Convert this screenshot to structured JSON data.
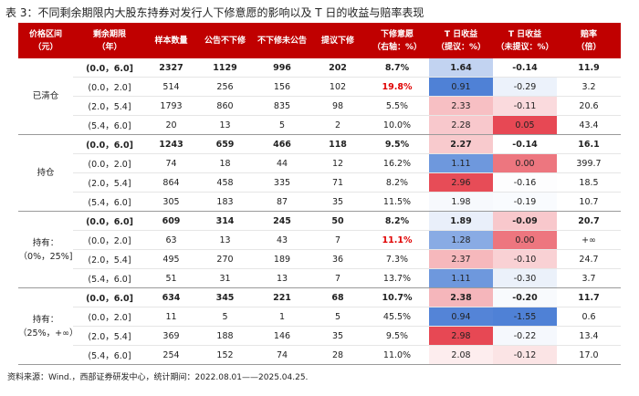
{
  "title": "表 3：不同剩余期限内大股东持券对发行人下修意愿的影响以及 T 日的收益与赔率表现",
  "table": {
    "headers": [
      [
        "价格区间",
        "（元）"
      ],
      [
        "剩余期限",
        "（年）"
      ],
      [
        "样本数量"
      ],
      [
        "公告不下修"
      ],
      [
        "不下修未公告"
      ],
      [
        "提议下修"
      ],
      [
        "下修意愿",
        "（右轴：%）"
      ],
      [
        "T 日收益",
        "（提议：%）"
      ],
      [
        "T 日收益",
        "（未提议：%）"
      ],
      [
        "赔率",
        "（倍）"
      ]
    ],
    "groups": [
      {
        "label": [
          "已清仓"
        ],
        "rows": [
          [
            "(0.0，6.0]",
            "2327",
            "1129",
            "996",
            "202",
            "8.7%",
            "1.64",
            "-0.14",
            "11.9"
          ],
          [
            "(0.0，2.0]",
            "514",
            "256",
            "156",
            "102",
            "19.8%",
            "0.91",
            "-0.29",
            "3.2"
          ],
          [
            "(2.0，5.4]",
            "1793",
            "860",
            "835",
            "98",
            "5.5%",
            "2.33",
            "-0.11",
            "20.6"
          ],
          [
            "(5.4，6.0]",
            "20",
            "13",
            "5",
            "2",
            "10.0%",
            "2.28",
            "0.05",
            "43.4"
          ]
        ]
      },
      {
        "label": [
          "持仓"
        ],
        "rows": [
          [
            "(0.0，6.0]",
            "1243",
            "659",
            "466",
            "118",
            "9.5%",
            "2.27",
            "-0.14",
            "16.1"
          ],
          [
            "(0.0，2.0]",
            "74",
            "18",
            "44",
            "12",
            "16.2%",
            "1.11",
            "0.00",
            "399.7"
          ],
          [
            "(2.0，5.4]",
            "864",
            "458",
            "335",
            "71",
            "8.2%",
            "2.96",
            "-0.16",
            "18.5"
          ],
          [
            "(5.4，6.0]",
            "305",
            "183",
            "87",
            "35",
            "11.5%",
            "1.98",
            "-0.19",
            "10.7"
          ]
        ]
      },
      {
        "label": [
          "持有：",
          "（0%，25%]"
        ],
        "rows": [
          [
            "(0.0，6.0]",
            "609",
            "314",
            "245",
            "50",
            "8.2%",
            "1.89",
            "-0.09",
            "20.7"
          ],
          [
            "(0.0，2.0]",
            "63",
            "13",
            "43",
            "7",
            "11.1%",
            "1.28",
            "0.00",
            "+∞"
          ],
          [
            "(2.0，5.4]",
            "495",
            "270",
            "189",
            "36",
            "7.3%",
            "2.37",
            "-0.10",
            "24.7"
          ],
          [
            "(5.4，6.0]",
            "51",
            "31",
            "13",
            "7",
            "13.7%",
            "1.11",
            "-0.30",
            "3.7"
          ]
        ]
      },
      {
        "label": [
          "持有：",
          "（25%，+∞）"
        ],
        "rows": [
          [
            "(0.0，6.0]",
            "634",
            "345",
            "221",
            "68",
            "10.7%",
            "2.38",
            "-0.20",
            "11.7"
          ],
          [
            "(0.0，2.0]",
            "11",
            "5",
            "1",
            "5",
            "45.5%",
            "0.94",
            "-1.55",
            "0.6"
          ],
          [
            "(2.0，5.4]",
            "369",
            "188",
            "146",
            "35",
            "9.5%",
            "2.98",
            "-0.22",
            "13.4"
          ],
          [
            "(5.4，6.0]",
            "254",
            "152",
            "74",
            "28",
            "11.0%",
            "2.08",
            "-0.12",
            "17.0"
          ]
        ]
      }
    ],
    "highlights": [
      {
        "group": 0,
        "row": 1,
        "col": 5,
        "color": "#e00000"
      },
      {
        "group": 2,
        "row": 1,
        "col": 5,
        "color": "#e00000"
      }
    ]
  },
  "source": "资料来源：Wind.，西部证券研发中心，统计期间：2022.08.01——2025.04.25."
}
